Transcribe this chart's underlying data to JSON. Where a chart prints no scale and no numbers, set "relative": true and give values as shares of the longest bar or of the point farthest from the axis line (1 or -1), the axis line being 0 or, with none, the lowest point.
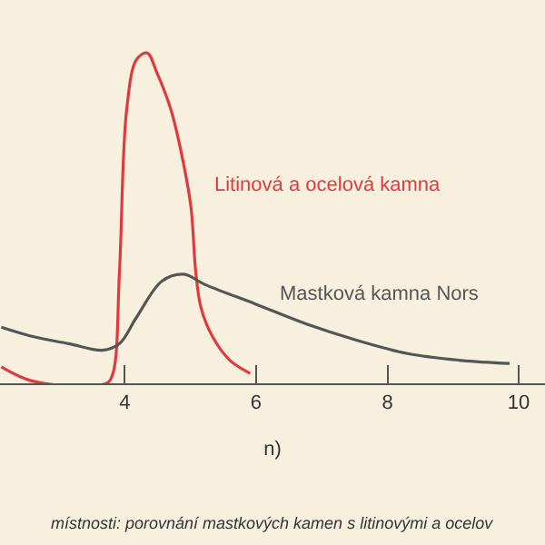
{
  "chart_data": {
    "type": "line",
    "relative": true,
    "xlabel": "n)",
    "xlim": [
      2.1,
      10.4
    ],
    "xticks": [
      4,
      6,
      8,
      10
    ],
    "grid": false,
    "legend": false,
    "annotations": [
      "místnosti: porovnání mastkových kamen s litinovými a ocelov"
    ],
    "series": [
      {
        "name": "Litinová a ocelová kamna",
        "color": "#e0393e",
        "x": [
          2.12,
          2.63,
          3.72,
          3.82,
          3.92,
          4.03,
          4.18,
          4.34,
          4.49,
          4.7,
          4.9,
          5.01,
          5.08,
          5.16,
          5.34,
          5.6,
          5.91
        ],
        "values": [
          0.05,
          0.005,
          0,
          0.03,
          0.34,
          0.83,
          0.98,
          1,
          0.94,
          0.83,
          0.66,
          0.53,
          0.34,
          0.23,
          0.14,
          0.07,
          0.03
        ]
      },
      {
        "name": "Mastková kamna Nors",
        "color": "#555555",
        "x": [
          2.12,
          2.63,
          3.15,
          3.66,
          3.92,
          4.18,
          4.57,
          4.9,
          5.21,
          5.99,
          6.76,
          7.54,
          8.31,
          9.09,
          9.86
        ],
        "values": [
          0.17,
          0.14,
          0.12,
          0.1,
          0.12,
          0.2,
          0.31,
          0.33,
          0.3,
          0.24,
          0.18,
          0.13,
          0.09,
          0.07,
          0.06
        ]
      }
    ]
  }
}
